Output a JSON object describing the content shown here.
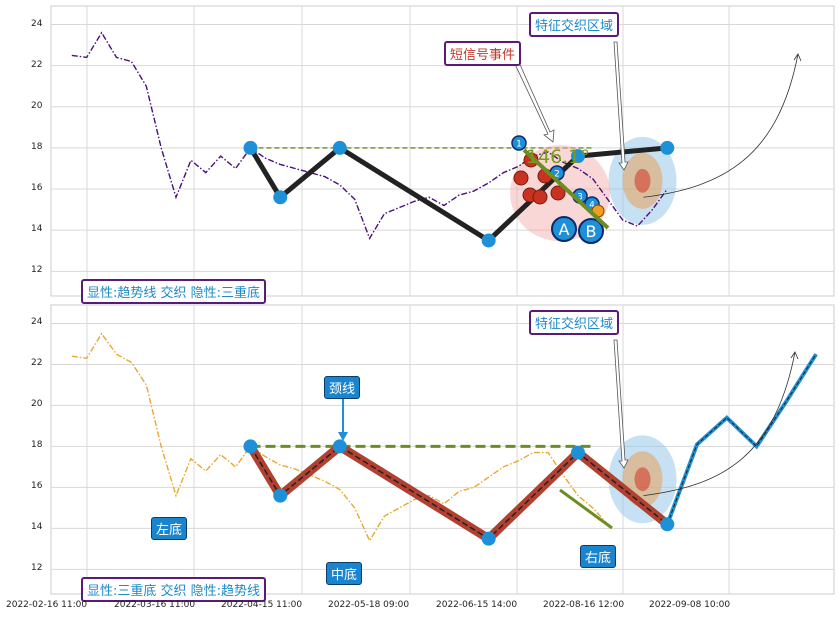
{
  "chart_data": [
    {
      "type": "line",
      "ylim": [
        10.8,
        24.9
      ],
      "yticks": [
        12,
        14,
        16,
        18,
        20,
        22,
        24
      ],
      "price_series": {
        "color": "#4b0f7a",
        "style": "dash-dot",
        "x": [
          0.0,
          0.5,
          1.0,
          1.5,
          2.0,
          2.5,
          3.0,
          3.5,
          4.0,
          4.5,
          5.0,
          5.5,
          6.0,
          6.5,
          7.0,
          7.5,
          8.0,
          8.5,
          9.0,
          9.5,
          10.0,
          10.5,
          11.0,
          11.5,
          12.0,
          12.5,
          13.0,
          13.5,
          14.0,
          14.5,
          15.0,
          15.5,
          16.0,
          16.5,
          17.0,
          17.5,
          18.0,
          18.5,
          19.0,
          19.5,
          20.0
        ],
        "y": [
          22.5,
          22.4,
          23.6,
          22.4,
          22.2,
          21.0,
          18.0,
          15.6,
          17.4,
          16.8,
          17.6,
          17.0,
          18.0,
          17.5,
          17.2,
          17.0,
          16.8,
          16.6,
          16.2,
          15.5,
          13.6,
          14.8,
          15.1,
          15.4,
          15.6,
          15.2,
          15.7,
          15.9,
          16.3,
          16.8,
          17.1,
          17.6,
          17.8,
          17.3,
          17.0,
          16.5,
          15.5,
          14.5,
          14.2,
          15.0,
          16.0
        ]
      },
      "pattern_points": {
        "x": [
          6.0,
          7.0,
          9.0,
          14.0,
          17.0,
          20.0
        ],
        "y": [
          18.0,
          15.6,
          18.0,
          13.5,
          17.6,
          18.0
        ]
      },
      "neckline": {
        "y": 18.0,
        "color": "#6b8e23"
      },
      "angle_text": "146.1°",
      "annotations": {
        "short_signal": "短信号事件",
        "feature_zone": "特征交织区域",
        "marker_A": "A",
        "marker_B": "B",
        "marker_1": "1",
        "marker_2": "2",
        "marker_3": "3",
        "marker_4": "4"
      },
      "legend_text": "显性:趋势线 交织 隐性:三重底"
    },
    {
      "type": "line",
      "ylim": [
        10.8,
        24.9
      ],
      "yticks": [
        12,
        14,
        16,
        18,
        20,
        22,
        24
      ],
      "price_series": {
        "color": "#e8a830",
        "style": "dash-dot",
        "x": [
          0.0,
          0.5,
          1.0,
          1.5,
          2.0,
          2.5,
          3.0,
          3.5,
          4.0,
          4.5,
          5.0,
          5.5,
          6.0,
          6.5,
          7.0,
          7.5,
          8.0,
          8.5,
          9.0,
          9.5,
          10.0,
          10.5,
          11.0,
          11.5,
          12.0,
          12.5,
          13.0,
          13.5,
          14.0,
          14.5,
          15.0,
          15.5,
          16.0,
          16.5,
          17.0,
          17.5,
          18.0
        ],
        "y": [
          22.4,
          22.3,
          23.5,
          22.5,
          22.1,
          21.0,
          18.0,
          15.6,
          17.4,
          16.8,
          17.6,
          17.0,
          18.0,
          17.5,
          17.1,
          16.9,
          16.6,
          16.3,
          15.9,
          15.0,
          13.4,
          14.6,
          15.0,
          15.4,
          15.6,
          15.2,
          15.8,
          16.0,
          16.5,
          17.0,
          17.3,
          17.7,
          17.7,
          16.6,
          15.6,
          15.0,
          14.2
        ]
      },
      "pattern_points": {
        "x": [
          6.0,
          7.0,
          9.0,
          14.0,
          17.0,
          20.0
        ],
        "y": [
          18.0,
          15.6,
          18.0,
          13.5,
          17.7,
          14.2
        ]
      },
      "projection": {
        "x": [
          20.0,
          21.0,
          22.0,
          23.0,
          24.0,
          25.0
        ],
        "y": [
          14.2,
          18.1,
          19.4,
          18.0,
          20.2,
          22.5
        ]
      },
      "neckline": {
        "y": 18.0,
        "color": "#6b8e23"
      },
      "annotations": {
        "neckline_label": "颈线",
        "left_bottom": "左底",
        "middle_bottom": "中底",
        "right_bottom": "右底",
        "feature_zone": "特征交织区域"
      },
      "legend_text": "显性:三重底 交织 隐性:趋势线"
    }
  ],
  "x_tick_labels": [
    "2022-02-16 11:00",
    "2022-03-16 11:00",
    "2022-04-15 11:00",
    "2022-05-18 09:00",
    "2022-06-15 14:00",
    "2022-08-16 12:00",
    "2022-09-08 10:00"
  ],
  "colors": {
    "pattern_line": "#222222",
    "pattern_fill": "#b24030",
    "node": "#1e90d8",
    "projection": "#1e90d8",
    "neckline": "#6b8e23"
  }
}
